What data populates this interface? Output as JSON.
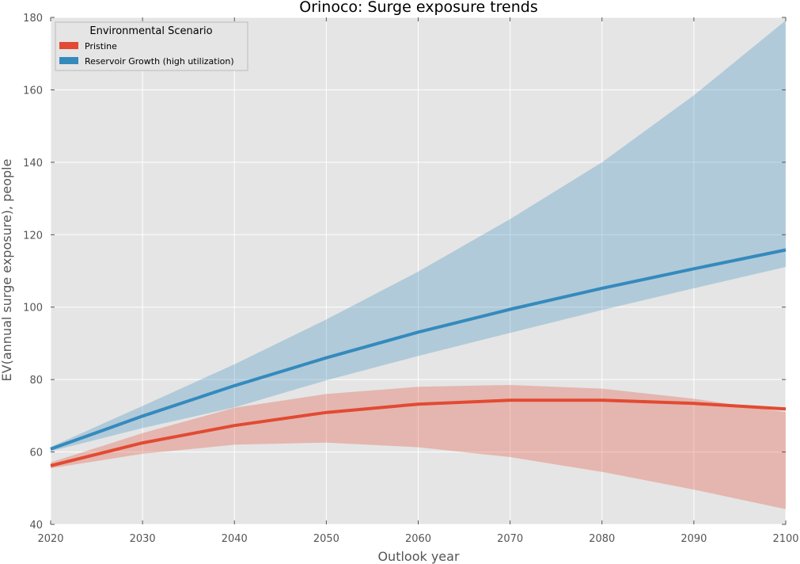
{
  "chart_data": {
    "type": "line",
    "title": "Orinoco: Surge exposure trends",
    "xlabel": "Outlook year",
    "ylabel": "EV(annual surge exposure), people",
    "xlim": [
      2020,
      2100
    ],
    "ylim": [
      40,
      180
    ],
    "x_ticks": [
      2020,
      2030,
      2040,
      2050,
      2060,
      2070,
      2080,
      2090,
      2100
    ],
    "y_ticks": [
      40,
      60,
      80,
      100,
      120,
      140,
      160,
      180
    ],
    "grid": true,
    "legend": {
      "title": "Environmental Scenario",
      "placement": "top-left"
    },
    "x": [
      2020,
      2030,
      2040,
      2050,
      2060,
      2070,
      2080,
      2090,
      2100
    ],
    "series": [
      {
        "name": "Pristine",
        "color": "#E24A33",
        "values": [
          56.2,
          62.5,
          67.3,
          70.9,
          73.2,
          74.3,
          74.3,
          73.4,
          71.9
        ],
        "lower": [
          55.5,
          59.5,
          62.0,
          62.6,
          61.3,
          58.6,
          54.5,
          49.6,
          44.2
        ],
        "upper": [
          57.1,
          65.2,
          72.2,
          76.0,
          78.0,
          78.5,
          77.5,
          74.7,
          71.0
        ]
      },
      {
        "name": "Reservoir Growth (high utilization)",
        "color": "#348ABD",
        "values": [
          60.8,
          69.9,
          78.3,
          86.0,
          93.1,
          99.4,
          105.2,
          110.6,
          115.8
        ],
        "lower": [
          60.2,
          66.6,
          72.3,
          79.8,
          86.5,
          92.9,
          99.2,
          105.2,
          111.1
        ],
        "upper": [
          61.4,
          72.7,
          84.2,
          96.6,
          109.8,
          124.3,
          140.0,
          158.5,
          179.2
        ]
      }
    ]
  }
}
